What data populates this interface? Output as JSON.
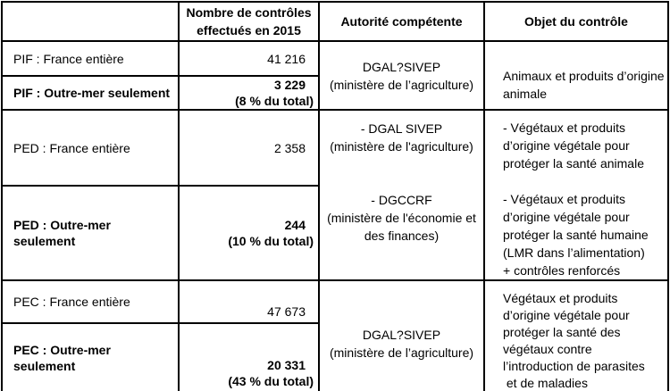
{
  "colors": {
    "background": "#ffffff",
    "border": "#000000",
    "text": "#000000"
  },
  "table": {
    "header": {
      "empty": "",
      "count_lines": [
        "Nombre de contrôles",
        "effectués en 2015"
      ],
      "authority": "Autorité compétente",
      "object": "Objet du contrôle"
    },
    "pif": {
      "france": {
        "label": "PIF : France entière",
        "value_lines": [
          "41 216"
        ]
      },
      "outremer": {
        "label": "PIF : Outre-mer seulement",
        "value_lines": [
          "3 229",
          "(8 % du total)"
        ]
      },
      "authority_lines": [
        "DGAL?SIVEP",
        "(ministère de l’agriculture)"
      ],
      "object_lines": [
        "Animaux et produits d’origine",
        "animale"
      ]
    },
    "ped": {
      "france": {
        "label": "PED : France entière",
        "value_lines": [
          "2 358"
        ]
      },
      "outremer": {
        "label": "PED : Outre-mer seulement",
        "value_lines": [
          "244",
          "(10 % du total)"
        ]
      },
      "authority_lines": [
        "- DGAL SIVEP",
        "(ministère de l'agriculture)",
        "",
        "",
        "- DGCCRF",
        "(ministère de l'économie et",
        "des finances)"
      ],
      "object_lines": [
        "- Végétaux et produits",
        "d’origine végétale pour",
        "protéger la santé animale",
        "",
        "- Végétaux et produits",
        "d’origine végétale pour",
        "protéger la santé humaine",
        "(LMR dans l’alimentation)",
        "+ contrôles renforcés"
      ]
    },
    "pec": {
      "france": {
        "label": "PEC : France entière",
        "value_lines": [
          "47 673"
        ]
      },
      "outremer": {
        "label": "PEC : Outre-mer seulement",
        "value_lines": [
          "20 331",
          "(43 % du total)"
        ]
      },
      "authority_lines": [
        "DGAL?SIVEP",
        "(ministère de l’agriculture)"
      ],
      "object_lines": [
        "Végétaux et produits",
        "d’origine végétale pour",
        "protéger la santé des",
        "végétaux contre",
        "l’introduction de parasites",
        " et de maladies"
      ]
    }
  }
}
